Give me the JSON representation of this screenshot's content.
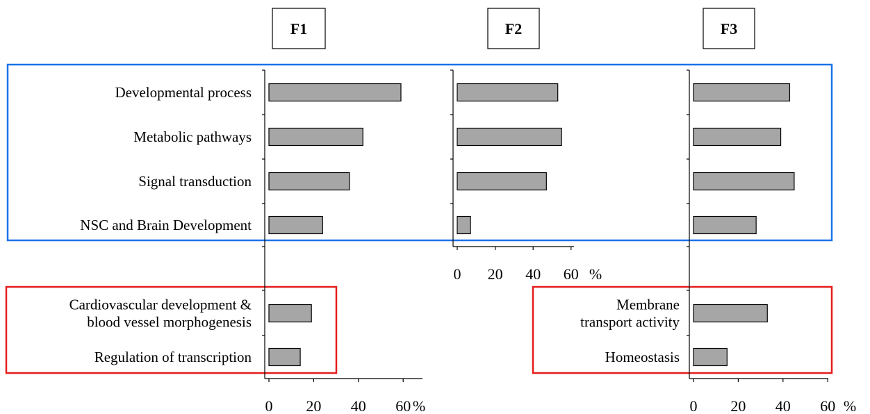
{
  "colors": {
    "bar_fill": "#a6a6a6",
    "bar_stroke": "#000000",
    "axis": "#000000",
    "box_blue": "#1a73e8",
    "box_red": "#e51c1c"
  },
  "chart_data": [
    {
      "type": "bar",
      "orientation": "horizontal",
      "title": "F1",
      "categories": [
        "Developmental process",
        "Metabolic pathways",
        "Signal transduction",
        "NSC and Brain Development",
        "Cardiovascular development & blood vessel morphogenesis",
        "Regulation of transcription"
      ],
      "category_lines": [
        [
          "Developmental process"
        ],
        [
          "Metabolic pathways"
        ],
        [
          "Signal transduction"
        ],
        [
          "NSC and Brain Development"
        ],
        [
          "Cardiovascular development &",
          "blood vessel morphogenesis"
        ],
        [
          "Regulation of transcription"
        ]
      ],
      "values": [
        59,
        42,
        36,
        24,
        19,
        14
      ],
      "xlim": [
        0,
        68
      ],
      "xticks": [
        "0",
        "20",
        "40",
        "60"
      ],
      "unit": "%",
      "grid": false
    },
    {
      "type": "bar",
      "orientation": "horizontal",
      "title": "F2",
      "categories": [
        "Developmental process",
        "Metabolic pathways",
        "Signal transduction",
        "NSC and Brain Development"
      ],
      "values": [
        53,
        55,
        47,
        7
      ],
      "xlim": [
        0,
        60
      ],
      "xticks": [
        "0",
        "20",
        "40",
        "60"
      ],
      "unit": "%",
      "grid": false
    },
    {
      "type": "bar",
      "orientation": "horizontal",
      "title": "F3",
      "categories": [
        "Developmental process",
        "Metabolic pathways",
        "Signal transduction",
        "NSC and Brain Development",
        "Membrane transport activity",
        "Homeostasis"
      ],
      "category_lines": [
        [],
        [],
        [],
        [],
        [
          "Membrane",
          "transport activity"
        ],
        [
          "Homeostasis"
        ]
      ],
      "values": [
        43,
        39,
        45,
        28,
        33,
        15
      ],
      "xlim": [
        0,
        60
      ],
      "xticks": [
        "0",
        "20",
        "40",
        "60"
      ],
      "unit": "%",
      "grid": false
    }
  ]
}
